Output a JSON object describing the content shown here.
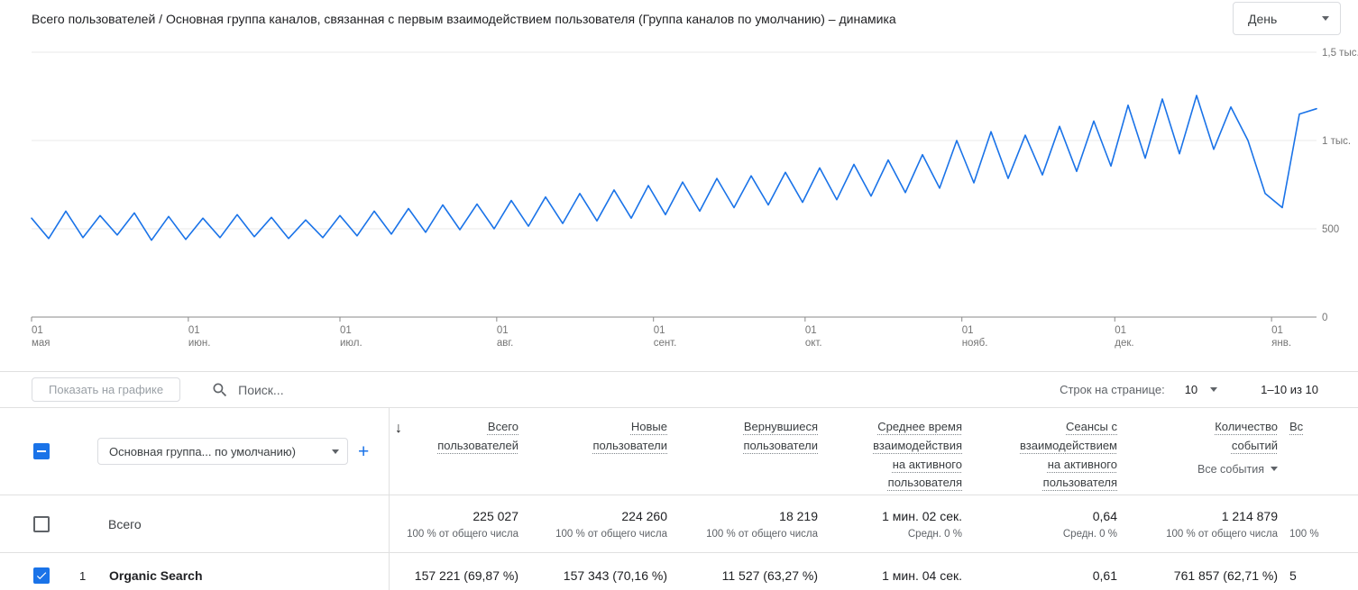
{
  "header": {
    "title": "Всего пользователей / Основная группа каналов, связанная с первым взаимодействием пользователя (Группа каналов по умолчанию) – динамика",
    "granularity_value": "День"
  },
  "chart_data": {
    "type": "line",
    "title": "Всего пользователей / Основная группа каналов, связанная с первым взаимодействием пользователя (Группа каналов по умолчанию) – динамика",
    "line_color": "#1a73e8",
    "grid": true,
    "ylim": [
      0,
      1500
    ],
    "y_ticks": [
      {
        "value": 1500,
        "label": "1,5 тыс."
      },
      {
        "value": 1000,
        "label": "1 тыс."
      },
      {
        "value": 500,
        "label": "500"
      },
      {
        "value": 0,
        "label": "0"
      }
    ],
    "x_ticks": [
      {
        "line1": "01",
        "line2": "мая",
        "pos": 0.0
      },
      {
        "line1": "01",
        "line2": "июн.",
        "pos": 0.122
      },
      {
        "line1": "01",
        "line2": "июл.",
        "pos": 0.24
      },
      {
        "line1": "01",
        "line2": "авг.",
        "pos": 0.362
      },
      {
        "line1": "01",
        "line2": "сент.",
        "pos": 0.484
      },
      {
        "line1": "01",
        "line2": "окт.",
        "pos": 0.602
      },
      {
        "line1": "01",
        "line2": "нояб.",
        "pos": 0.724
      },
      {
        "line1": "01",
        "line2": "дек.",
        "pos": 0.843
      },
      {
        "line1": "01",
        "line2": "янв.",
        "pos": 0.965
      }
    ],
    "series": [
      {
        "name": "Всего пользователей",
        "values": [
          560,
          445,
          600,
          450,
          575,
          465,
          590,
          435,
          570,
          440,
          560,
          450,
          580,
          455,
          565,
          445,
          550,
          450,
          575,
          460,
          600,
          470,
          615,
          480,
          635,
          495,
          640,
          500,
          660,
          515,
          680,
          530,
          700,
          545,
          720,
          560,
          745,
          580,
          765,
          600,
          785,
          620,
          800,
          635,
          820,
          650,
          845,
          665,
          865,
          685,
          890,
          705,
          920,
          730,
          1000,
          760,
          1050,
          785,
          1030,
          805,
          1080,
          825,
          1110,
          855,
          1200,
          900,
          1235,
          925,
          1255,
          950,
          1190,
          1000,
          700,
          620,
          1150,
          1180
        ]
      }
    ]
  },
  "toolbar": {
    "show_on_chart": "Показать на графике",
    "search_placeholder": "Поиск...",
    "rows_per_page_label": "Строк на странице:",
    "rows_per_page_value": "10",
    "range": "1–10 из 10"
  },
  "table": {
    "dimension_dropdown": "Основная группа... по умолчанию)",
    "add_label": "+",
    "sort_icon": "↓",
    "columns": [
      {
        "title": "Всего\nпользователей"
      },
      {
        "title": "Новые\nпользователи"
      },
      {
        "title": "Вернувшиеся\nпользователи"
      },
      {
        "title": "Среднее время\nвзаимодействия\nна активного\nпользователя"
      },
      {
        "title": "Сеансы с\nвзаимодействием\nна активного\nпользователя"
      },
      {
        "title": "Количество\nсобытий",
        "filter": "Все события"
      }
    ],
    "partial_column": {
      "header": "Вс",
      "totals_sub": "100 %",
      "row_value": "5"
    },
    "totals": {
      "label": "Всего",
      "cells": [
        {
          "value": "225 027",
          "sub": "100 % от общего числа"
        },
        {
          "value": "224 260",
          "sub": "100 % от общего числа"
        },
        {
          "value": "18 219",
          "sub": "100 % от общего числа"
        },
        {
          "value": "1 мин. 02 сек.",
          "sub": "Средн. 0 %"
        },
        {
          "value": "0,64",
          "sub": "Средн. 0 %"
        },
        {
          "value": "1 214 879",
          "sub": "100 % от общего числа"
        }
      ]
    },
    "rows": [
      {
        "index": "1",
        "name": "Organic Search",
        "checked": true,
        "cells": [
          "157 221 (69,87 %)",
          "157 343 (70,16 %)",
          "11 527 (63,27 %)",
          "1 мин. 04 сек.",
          "0,61",
          "761 857 (62,71 %)"
        ]
      }
    ]
  }
}
